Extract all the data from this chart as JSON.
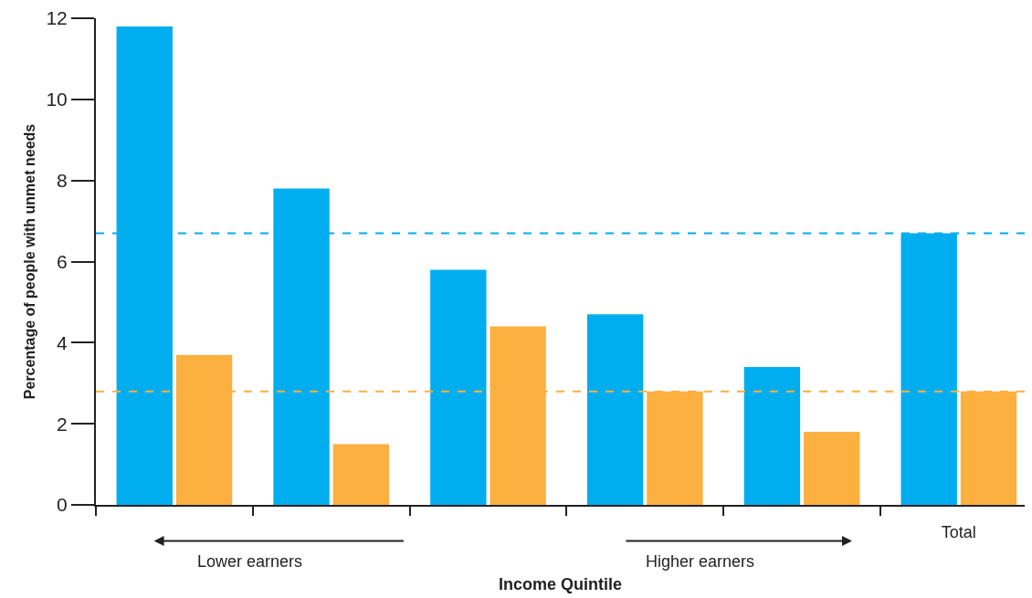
{
  "chart_data": {
    "type": "bar",
    "xlabel": "Income Quintile",
    "ylabel": "Percentage of people with unmet needs",
    "categories": [
      null,
      null,
      null,
      null,
      null,
      "Total"
    ],
    "series": [
      {
        "color": "#00aeef",
        "values": [
          11.8,
          7.8,
          5.8,
          4.7,
          3.4,
          6.7
        ]
      },
      {
        "color": "#fbb040",
        "values": [
          3.7,
          1.5,
          4.4,
          2.8,
          1.8,
          2.8
        ]
      }
    ],
    "ylim": [
      0,
      12
    ],
    "yticks": [
      0,
      2,
      4,
      6,
      8,
      10,
      12
    ],
    "ref_lines": [
      {
        "axis": "y",
        "value": 6.7,
        "color": "#00aeef",
        "line_style": "dashed"
      },
      {
        "axis": "y",
        "value": 2.8,
        "color": "#fbb040",
        "line_style": "dashed"
      }
    ],
    "annotations": [
      "Lower earners",
      "Higher earners"
    ]
  }
}
